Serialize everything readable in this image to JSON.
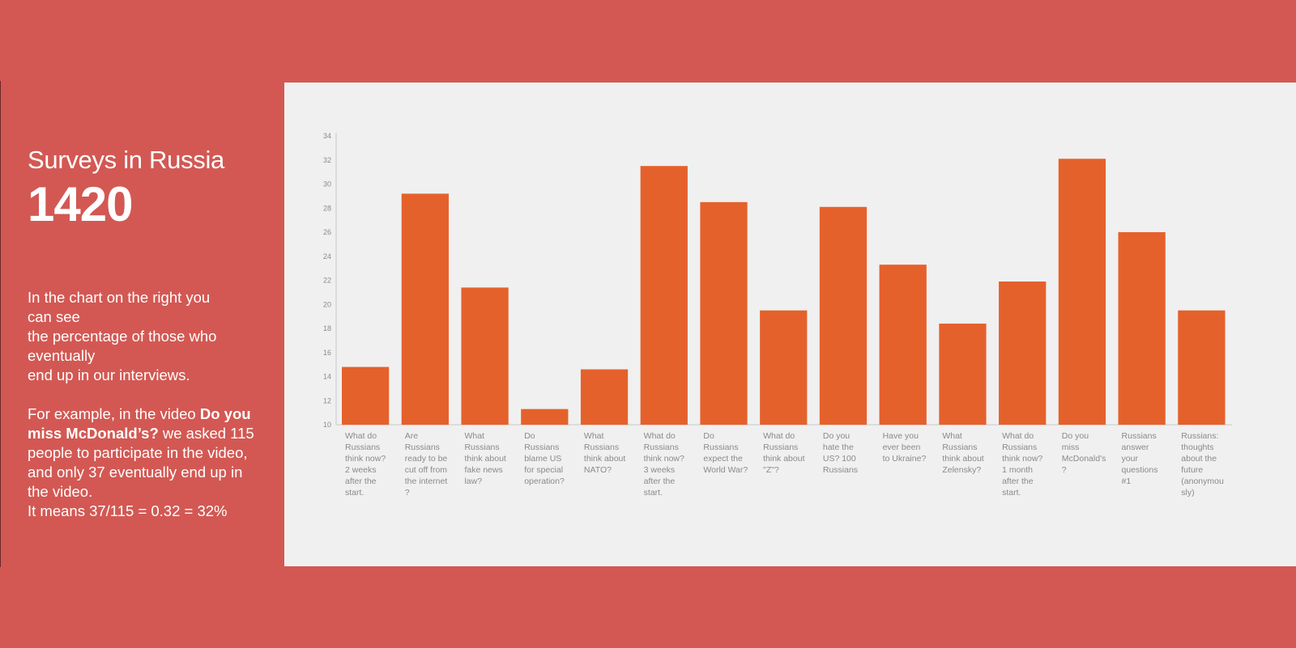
{
  "left": {
    "title": "Surveys in Russia",
    "count": "1420",
    "desc_lines_1": [
      "In the chart on the right you",
      "can see",
      "the percentage of those who",
      "eventually",
      "end up in our interviews."
    ],
    "example_prefix": "For example,  in the video ",
    "example_bold": "Do you miss McDonald’s?",
    "example_rest": " we asked 115 people to participate in the video, and only 37 eventually end up in the video.",
    "formula": "It means 37/115 = 0.32 = 32%"
  },
  "colors": {
    "background": "#d35853",
    "panel": "#f0f0f0",
    "bar": "#e5612c"
  },
  "chart_data": {
    "type": "bar",
    "categories": [
      "What do Russians think now? 2 weeks after the start.",
      "Are Russians ready to be cut off from the internet ?",
      "What Russians think about fake news law?",
      "Do Russians blame US for special operation?",
      "What Russians think about NATO?",
      "What do Russians think now? 3 weeks after the start.",
      "Do Russians expect the World War?",
      "What do Russians think about \"Z\"?",
      "Do you hate the US? 100 Russians",
      "Have you ever been to Ukraine?",
      "What Russians think about Zelensky?",
      "What do Russians think now? 1 month after the start.",
      "Do you miss McDonald's ?",
      "Russians answer your questions #1",
      "Russians: thoughts about the future (anonymously)"
    ],
    "values": [
      14.8,
      29.2,
      21.4,
      11.3,
      14.6,
      31.5,
      28.5,
      19.5,
      28.1,
      23.3,
      18.4,
      21.9,
      32.1,
      26.0,
      19.5
    ],
    "ylim": [
      10,
      34
    ],
    "yticks": [
      10,
      12,
      14,
      16,
      18,
      20,
      22,
      24,
      26,
      28,
      30,
      32,
      34
    ],
    "title": "",
    "xlabel": "",
    "ylabel": "",
    "grid": false
  }
}
